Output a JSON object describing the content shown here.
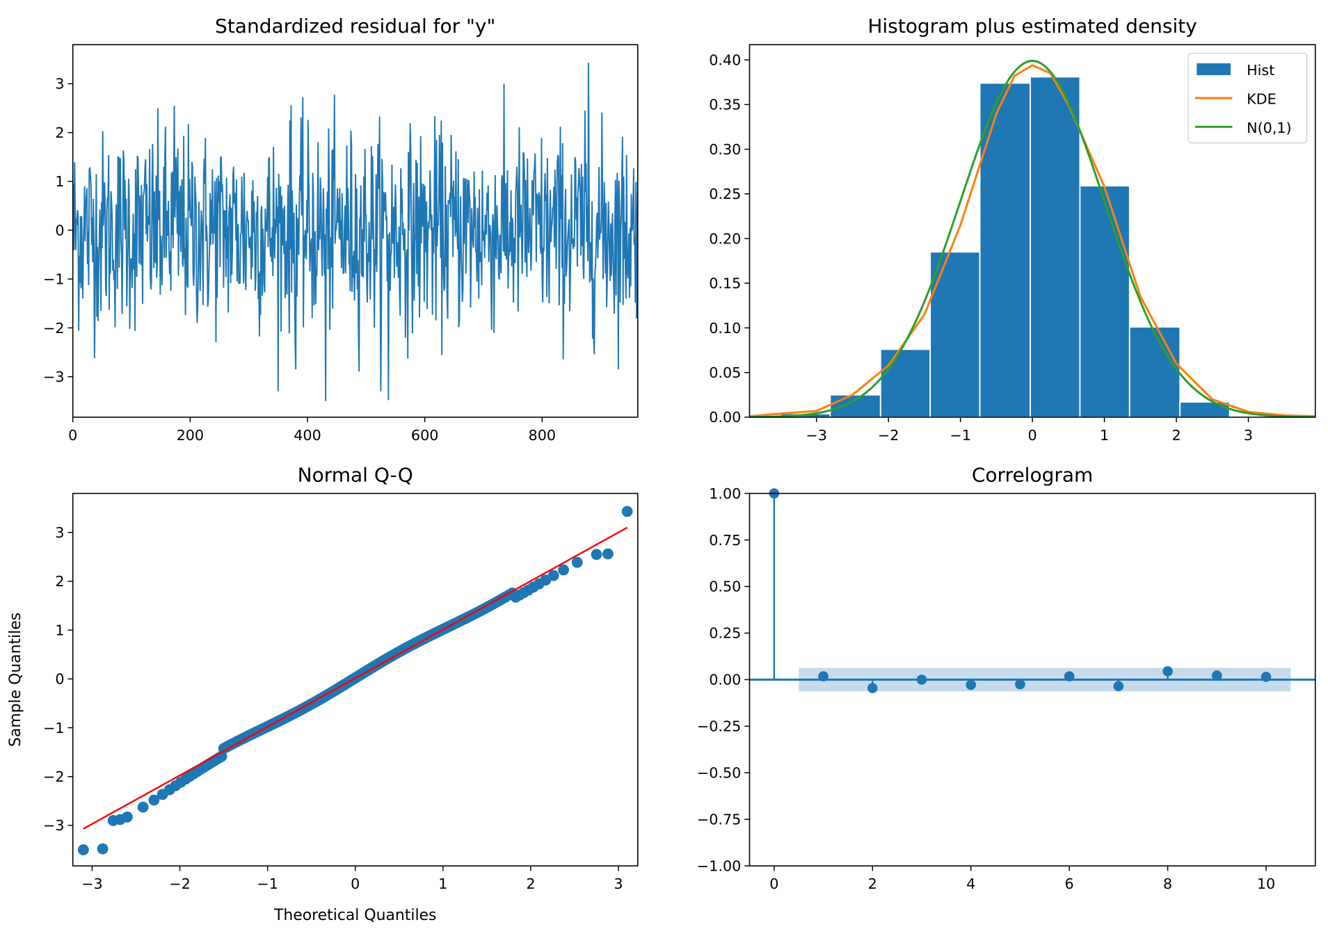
{
  "colors": {
    "blue": "#1f77b4",
    "orange": "#ff7f0e",
    "green": "#2ca02c",
    "red": "#ff0000",
    "band": "#c6dbec"
  },
  "chart_data": [
    {
      "type": "line",
      "title": "Standardized residual for \"y\"",
      "xlabel": "",
      "ylabel": "",
      "xlim": [
        0,
        963
      ],
      "ylim": [
        -3.83,
        3.8
      ],
      "xticks": [
        0,
        200,
        400,
        600,
        800
      ],
      "yticks": [
        -3,
        -2,
        -1,
        0,
        1,
        2,
        3
      ],
      "n_points": 964,
      "notable_points": [
        {
          "x": 431,
          "y": -3.5
        },
        {
          "x": 538,
          "y": -3.48
        },
        {
          "x": 879,
          "y": 3.43
        },
        {
          "x": 372,
          "y": 2.56
        },
        {
          "x": 173,
          "y": 2.55
        },
        {
          "x": 380,
          "y": -2.85
        }
      ],
      "series_stats": {
        "mean": 0.0,
        "std": 1.0
      }
    },
    {
      "type": "bar",
      "title": "Histogram plus estimated density",
      "xlim": [
        -3.93,
        3.93
      ],
      "ylim": [
        0,
        0.417
      ],
      "xticks": [
        -3,
        -2,
        -1,
        0,
        1,
        2,
        3
      ],
      "yticks": [
        "0.00",
        "0.05",
        "0.10",
        "0.15",
        "0.20",
        "0.25",
        "0.30",
        "0.35",
        "0.40"
      ],
      "bin_edges": [
        -3.5,
        -2.81,
        -2.11,
        -1.42,
        -0.73,
        -0.03,
        0.66,
        1.35,
        2.05,
        2.74,
        3.43
      ],
      "hist": [
        0.004,
        0.025,
        0.076,
        0.185,
        0.374,
        0.381,
        0.259,
        0.101,
        0.017,
        0.001
      ],
      "kde": {
        "x": [
          -3.93,
          -3.5,
          -3.0,
          -2.5,
          -2.0,
          -1.5,
          -1.0,
          -0.5,
          -0.25,
          0.0,
          0.25,
          0.5,
          1.0,
          1.5,
          2.0,
          2.5,
          3.0,
          3.5,
          3.93
        ],
        "y": [
          0.001,
          0.004,
          0.007,
          0.025,
          0.058,
          0.115,
          0.215,
          0.34,
          0.382,
          0.394,
          0.385,
          0.35,
          0.258,
          0.135,
          0.06,
          0.02,
          0.006,
          0.002,
          0.001
        ]
      },
      "normal": {
        "mean": 0,
        "std": 1
      },
      "legend": [
        "Hist",
        "KDE",
        "N(0,1)"
      ],
      "legend_position": "top-right"
    },
    {
      "type": "scatter",
      "title": "Normal Q-Q",
      "xlabel": "Theoretical Quantiles",
      "ylabel": "Sample Quantiles",
      "xlim": [
        -3.22,
        3.22
      ],
      "ylim": [
        -3.83,
        3.8
      ],
      "xticks": [
        -3,
        -2,
        -1,
        0,
        1,
        2,
        3
      ],
      "yticks": [
        -3,
        -2,
        -1,
        0,
        1,
        2,
        3
      ],
      "reference_line": {
        "x": [
          -3.1,
          3.1
        ],
        "y": [
          -3.07,
          3.1
        ]
      },
      "tail_points": [
        {
          "x": -3.1,
          "y": -3.5
        },
        {
          "x": -2.88,
          "y": -3.48
        },
        {
          "x": -2.76,
          "y": -2.9
        },
        {
          "x": -2.68,
          "y": -2.88
        },
        {
          "x": 2.75,
          "y": 2.55
        },
        {
          "x": 2.88,
          "y": 2.56
        },
        {
          "x": 3.1,
          "y": 3.43
        }
      ],
      "n_points": 964
    },
    {
      "type": "stem",
      "title": "Correlogram",
      "xlim": [
        -0.5,
        11
      ],
      "ylim": [
        -1,
        1
      ],
      "xticks": [
        0,
        2,
        4,
        6,
        8,
        10
      ],
      "yticks": [
        "−1.00",
        "−0.75",
        "−0.50",
        "−0.25",
        "0.00",
        "0.25",
        "0.50",
        "0.75",
        "1.00"
      ],
      "lags": [
        0,
        1,
        2,
        3,
        4,
        5,
        6,
        7,
        8,
        9,
        10
      ],
      "acf": [
        1.0,
        0.018,
        -0.045,
        0.0,
        -0.028,
        -0.025,
        0.018,
        -0.035,
        0.045,
        0.022,
        0.015
      ],
      "confidence_band": {
        "lag_range": [
          0.5,
          10.5
        ],
        "value": 0.063
      }
    }
  ]
}
